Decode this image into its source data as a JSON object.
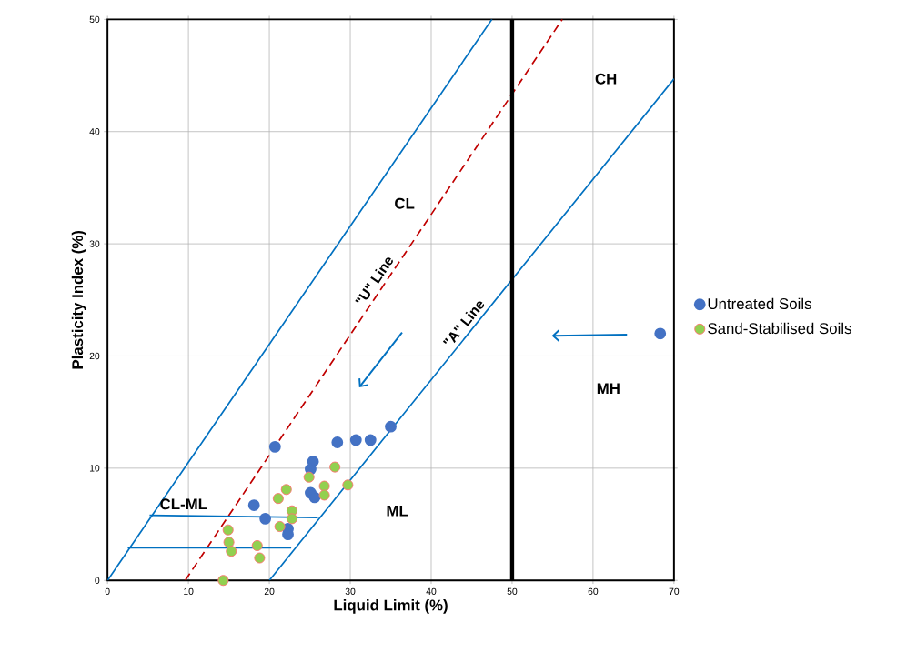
{
  "chart_data": {
    "type": "scatter",
    "xlabel": "Liquid Limit (%)",
    "ylabel": "Plasticity Index (%)",
    "xlim": [
      0,
      70
    ],
    "ylim": [
      0,
      50
    ],
    "xticks": [
      0,
      10,
      20,
      30,
      40,
      50,
      60,
      70
    ],
    "yticks": [
      0,
      10,
      20,
      30,
      40,
      50
    ],
    "grid": true,
    "legend": "right",
    "marker": "circle",
    "series": [
      {
        "type": "line",
        "color": "#0070c0",
        "line_style": "solid",
        "marker": "none",
        "x": [
          0,
          47.5
        ],
        "values": [
          0,
          50
        ]
      },
      {
        "type": "line",
        "color": "#c00000",
        "line_style": "dashed",
        "marker": "none",
        "x": [
          9.6,
          56.2
        ],
        "values": [
          0,
          50
        ]
      },
      {
        "type": "line",
        "color": "#0070c0",
        "line_style": "solid",
        "marker": "none",
        "x": [
          20,
          70
        ],
        "values": [
          0,
          44.7
        ]
      },
      {
        "type": "line",
        "color": "#0070c0",
        "line_style": "solid",
        "marker": "none",
        "x": [
          5.2,
          26
        ],
        "values": [
          5.8,
          5.6
        ]
      },
      {
        "type": "line",
        "color": "#0070c0",
        "line_style": "solid",
        "marker": "none",
        "x": [
          2.5,
          22.7
        ],
        "values": [
          2.9,
          2.9
        ]
      },
      {
        "name": "Untreated Soils",
        "color": "#4472c4",
        "x": [
          20.7,
          25.4,
          25.1,
          18.1,
          19.5,
          25.1,
          25.6,
          22.3,
          22.3,
          28.4,
          30.7,
          32.5,
          35.0,
          68.3
        ],
        "values": [
          11.9,
          10.6,
          9.9,
          6.7,
          5.5,
          7.8,
          7.4,
          4.6,
          4.1,
          12.3,
          12.5,
          12.5,
          13.7,
          22.0
        ]
      },
      {
        "name": "Sand-Stabilised Soils",
        "color": "#92d050",
        "x": [
          28.1,
          24.9,
          22.1,
          21.1,
          26.8,
          26.8,
          29.7,
          22.8,
          22.8,
          21.3,
          14.9,
          15.0,
          15.3,
          18.5,
          18.8,
          14.3
        ],
        "values": [
          10.1,
          9.2,
          8.1,
          7.3,
          8.4,
          7.6,
          8.5,
          6.2,
          5.5,
          4.8,
          4.5,
          3.4,
          2.6,
          3.1,
          2.0,
          0.0
        ]
      }
    ],
    "ref_lines": [
      {
        "axis": "x",
        "value": 50,
        "color": "#000000"
      }
    ],
    "annotations": [
      "CL",
      "CH",
      "ML",
      "MH",
      "CL-ML",
      {
        "text": "\"U\" Line",
        "x": 34,
        "y": 26.2
      },
      {
        "text": "\"A\" Line",
        "x": 45,
        "y": 22.35
      }
    ]
  }
}
